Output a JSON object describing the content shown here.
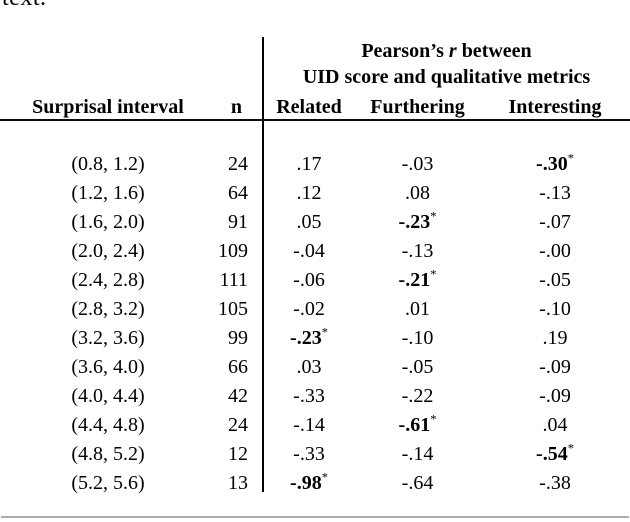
{
  "page": {
    "clipped_text_fragment": "text."
  },
  "colors": {
    "background": "#ffffff",
    "text": "#000000",
    "rule_dark": "#0d0d0d",
    "rule_light": "#ababad"
  },
  "table": {
    "group_header": {
      "line1_pre": "Pearson’s",
      "line1_italic": "r",
      "line1_post": "between",
      "line2": "UID score and qualitative metrics"
    },
    "columns": {
      "interval": "Surprisal interval",
      "n": "n",
      "related": "Related",
      "furthering": "Furthering",
      "interesting": "Interesting"
    },
    "significance_marker": "*",
    "rows": [
      {
        "interval": "(0.8, 1.2)",
        "n": "24",
        "related": ".17",
        "furthering": "-.03",
        "interesting": "-.30",
        "interesting_star": "*",
        "interesting_bold": true
      },
      {
        "interval": "(1.2, 1.6)",
        "n": "64",
        "related": ".12",
        "furthering": ".08",
        "interesting": "-.13"
      },
      {
        "interval": "(1.6, 2.0)",
        "n": "91",
        "related": ".05",
        "furthering": "-.23",
        "furthering_star": "*",
        "furthering_bold": true,
        "interesting": "-.07"
      },
      {
        "interval": "(2.0, 2.4)",
        "n": "109",
        "related": "-.04",
        "furthering": "-.13",
        "interesting": "-.00"
      },
      {
        "interval": "(2.4, 2.8)",
        "n": "111",
        "related": "-.06",
        "furthering": "-.21",
        "furthering_star": "*",
        "furthering_bold": true,
        "interesting": "-.05"
      },
      {
        "interval": "(2.8, 3.2)",
        "n": "105",
        "related": "-.02",
        "furthering": ".01",
        "interesting": "-.10"
      },
      {
        "interval": "(3.2, 3.6)",
        "n": "99",
        "related": "-.23",
        "related_star": "*",
        "related_bold": true,
        "furthering": "-.10",
        "interesting": ".19"
      },
      {
        "interval": "(3.6, 4.0)",
        "n": "66",
        "related": ".03",
        "furthering": "-.05",
        "interesting": "-.09"
      },
      {
        "interval": "(4.0, 4.4)",
        "n": "42",
        "related": "-.33",
        "furthering": "-.22",
        "interesting": "-.09"
      },
      {
        "interval": "(4.4, 4.8)",
        "n": "24",
        "related": "-.14",
        "furthering": "-.61",
        "furthering_star": "*",
        "furthering_bold": true,
        "interesting": ".04"
      },
      {
        "interval": "(4.8, 5.2)",
        "n": "12",
        "related": "-.33",
        "furthering": "-.14",
        "interesting": "-.54",
        "interesting_star": "*",
        "interesting_bold": true
      },
      {
        "interval": "(5.2, 5.6)",
        "n": "13",
        "related": "-.98",
        "related_star": "*",
        "related_bold": true,
        "furthering": "-.64",
        "interesting": "-.38"
      }
    ]
  }
}
